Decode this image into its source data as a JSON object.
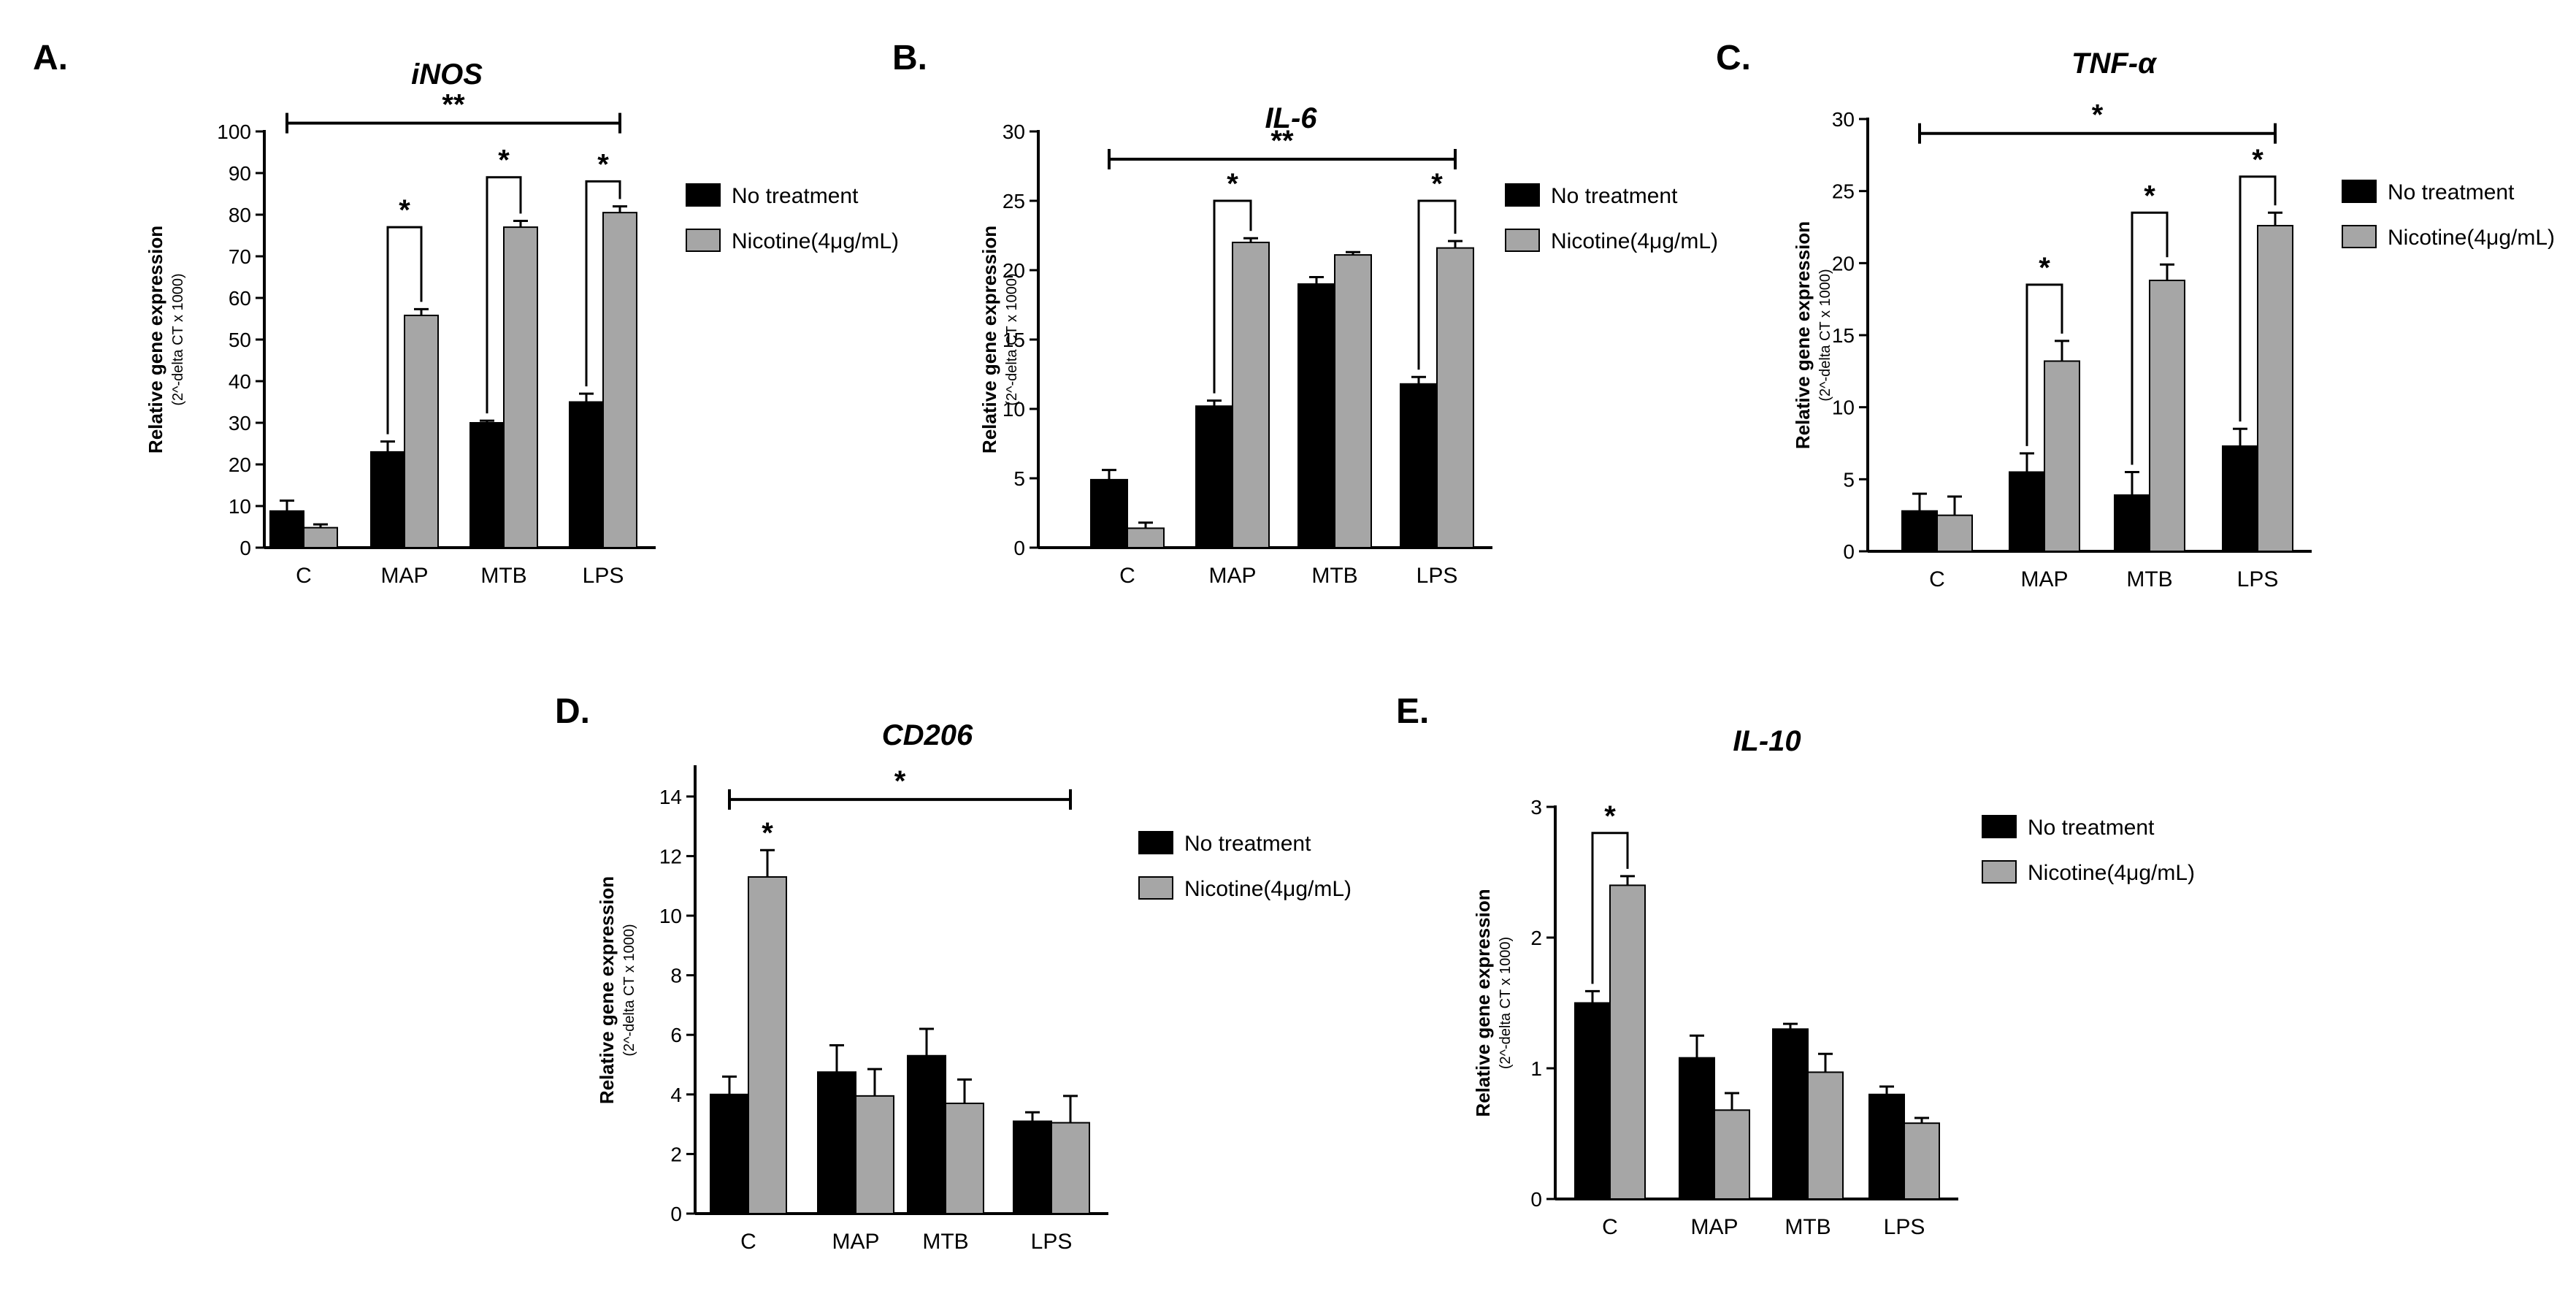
{
  "colors": {
    "no_treatment": "#000000",
    "nicotine": "#a6a6a6",
    "axis": "#000000"
  },
  "chart_data": [
    {
      "panel": "A.",
      "type": "bar",
      "title": "iNOS",
      "categories": [
        "C",
        "MAP",
        "MTB",
        "LPS"
      ],
      "ylabel": "Relative gene expression",
      "ylabel_sub": "(2^-delta CT x 1000)",
      "ylim": [
        0,
        100
      ],
      "yticks": [
        0,
        10,
        20,
        30,
        40,
        50,
        60,
        70,
        80,
        90,
        100
      ],
      "series": [
        {
          "name": "No treatment",
          "values": [
            8.8,
            23,
            30,
            35
          ],
          "errors": [
            2.5,
            2.5,
            0.5,
            2
          ]
        },
        {
          "name": "Nicotine(4μg/mL)",
          "values": [
            4.8,
            55.8,
            77,
            80.5
          ],
          "errors": [
            0.8,
            1.5,
            1.5,
            1.5
          ]
        }
      ],
      "annotations": [
        {
          "kind": "bracket",
          "from": 1,
          "to": 1,
          "y": 77,
          "label": "*"
        },
        {
          "kind": "bracket",
          "from": 2,
          "to": 2,
          "y": 89,
          "label": "*"
        },
        {
          "kind": "bracket",
          "from": 3,
          "to": 3,
          "y": 88,
          "label": "*"
        },
        {
          "kind": "line",
          "from": 0,
          "to": 3,
          "y": 102,
          "label": "**"
        }
      ]
    },
    {
      "panel": "B.",
      "type": "bar",
      "title": "IL-6",
      "categories": [
        "C",
        "MAP",
        "MTB",
        "LPS"
      ],
      "ylabel": "Relative gene expression",
      "ylabel_sub": "(2^-delta CT x 1000)",
      "ylim": [
        0,
        30
      ],
      "yticks": [
        0,
        5,
        10,
        15,
        20,
        25,
        30
      ],
      "series": [
        {
          "name": "No treatment",
          "values": [
            4.9,
            10.2,
            19,
            11.8
          ],
          "errors": [
            0.7,
            0.4,
            0.5,
            0.5
          ]
        },
        {
          "name": "Nicotine(4μg/mL)",
          "values": [
            1.4,
            22,
            21.1,
            21.6
          ],
          "errors": [
            0.4,
            0.3,
            0.2,
            0.5
          ]
        }
      ],
      "annotations": [
        {
          "kind": "bracket",
          "from": 1,
          "to": 1,
          "y": 25,
          "label": "*"
        },
        {
          "kind": "bracket",
          "from": 3,
          "to": 3,
          "y": 25,
          "label": "*"
        },
        {
          "kind": "line",
          "from": 0,
          "to": 3,
          "y": 28,
          "label": "**"
        }
      ]
    },
    {
      "panel": "C.",
      "type": "bar",
      "title": "TNF-α",
      "categories": [
        "C",
        "MAP",
        "MTB",
        "LPS"
      ],
      "ylabel": "Relative gene expression",
      "ylabel_sub": "(2^-delta CT x 1000)",
      "ylim": [
        0,
        30
      ],
      "yticks": [
        0,
        5,
        10,
        15,
        20,
        25,
        30
      ],
      "series": [
        {
          "name": "No treatment",
          "values": [
            2.8,
            5.5,
            3.9,
            7.3
          ],
          "errors": [
            1.2,
            1.3,
            1.6,
            1.2
          ]
        },
        {
          "name": "Nicotine(4μg/mL)",
          "values": [
            2.5,
            13.2,
            18.8,
            22.6
          ],
          "errors": [
            1.3,
            1.4,
            1.1,
            0.9
          ]
        }
      ],
      "annotations": [
        {
          "kind": "bracket",
          "from": 1,
          "to": 1,
          "y": 18.5,
          "label": "*"
        },
        {
          "kind": "bracket",
          "from": 2,
          "to": 2,
          "y": 23.5,
          "label": "*"
        },
        {
          "kind": "bracket",
          "from": 3,
          "to": 3,
          "y": 26,
          "label": "*"
        },
        {
          "kind": "line",
          "from": 0,
          "to": 3,
          "y": 29,
          "label": "*"
        }
      ]
    },
    {
      "panel": "D.",
      "type": "bar",
      "title": "CD206",
      "categories": [
        "C",
        "MAP",
        "MTB",
        "LPS"
      ],
      "ylabel": "Relative gene expression",
      "ylabel_sub": "(2^-delta CT x 1000)",
      "ylim": [
        0,
        15
      ],
      "yticks": [
        0,
        2,
        4,
        6,
        8,
        10,
        12,
        14
      ],
      "series": [
        {
          "name": "No treatment",
          "values": [
            4,
            4.75,
            5.3,
            3.1
          ],
          "errors": [
            0.6,
            0.9,
            0.9,
            0.3
          ]
        },
        {
          "name": "Nicotine(4μg/mL)",
          "values": [
            11.3,
            3.95,
            3.7,
            3.05
          ],
          "errors": [
            0.9,
            0.9,
            0.8,
            0.9
          ]
        }
      ],
      "annotations": [
        {
          "kind": "star",
          "at": 0,
          "series": 1,
          "y": 12.7,
          "label": "*"
        },
        {
          "kind": "line",
          "from": 0,
          "to": 3,
          "y": 13.9,
          "label": "*"
        }
      ]
    },
    {
      "panel": "E.",
      "type": "bar",
      "title": "IL-10",
      "categories": [
        "C",
        "MAP",
        "MTB",
        "LPS"
      ],
      "ylabel": "Relative gene expression",
      "ylabel_sub": "(2^-delta CT x 1000)",
      "ylim": [
        0,
        3
      ],
      "yticks": [
        0,
        1,
        2,
        3
      ],
      "series": [
        {
          "name": "No treatment",
          "values": [
            1.5,
            1.08,
            1.3,
            0.8
          ],
          "errors": [
            0.09,
            0.17,
            0.04,
            0.06
          ]
        },
        {
          "name": "Nicotine(4μg/mL)",
          "values": [
            2.4,
            0.68,
            0.97,
            0.58
          ],
          "errors": [
            0.07,
            0.13,
            0.14,
            0.04
          ]
        }
      ],
      "annotations": [
        {
          "kind": "bracket",
          "from": 0,
          "to": 0,
          "y": 2.8,
          "label": "*"
        }
      ]
    }
  ]
}
